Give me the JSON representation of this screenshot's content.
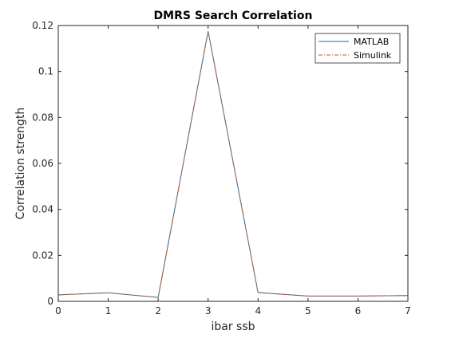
{
  "chart_data": {
    "type": "line",
    "title": "DMRS Search Correlation",
    "xlabel": "ibar ssb",
    "ylabel": "Correlation strength",
    "xlim": [
      0,
      7
    ],
    "ylim": [
      0,
      0.12
    ],
    "xticks": [
      0,
      1,
      2,
      3,
      4,
      5,
      6,
      7
    ],
    "yticks": [
      0,
      0.02,
      0.04,
      0.06,
      0.08,
      0.1,
      0.12
    ],
    "ytick_labels": [
      "0",
      "0.02",
      "0.04",
      "0.06",
      "0.08",
      "0.1",
      "0.12"
    ],
    "x": [
      0,
      1,
      2,
      3,
      4,
      5,
      6,
      7
    ],
    "series": [
      {
        "name": "MATLAB",
        "values": [
          0.0028,
          0.0037,
          0.0017,
          0.1175,
          0.0038,
          0.0023,
          0.0023,
          0.0025
        ],
        "color": "#0072BD",
        "style": "solid"
      },
      {
        "name": "Simulink",
        "values": [
          0.0028,
          0.0037,
          0.0017,
          0.1175,
          0.0038,
          0.0023,
          0.0023,
          0.0025
        ],
        "color": "#D95319",
        "style": "dash-dot"
      }
    ],
    "legend_position": "top-right",
    "grid": false
  }
}
